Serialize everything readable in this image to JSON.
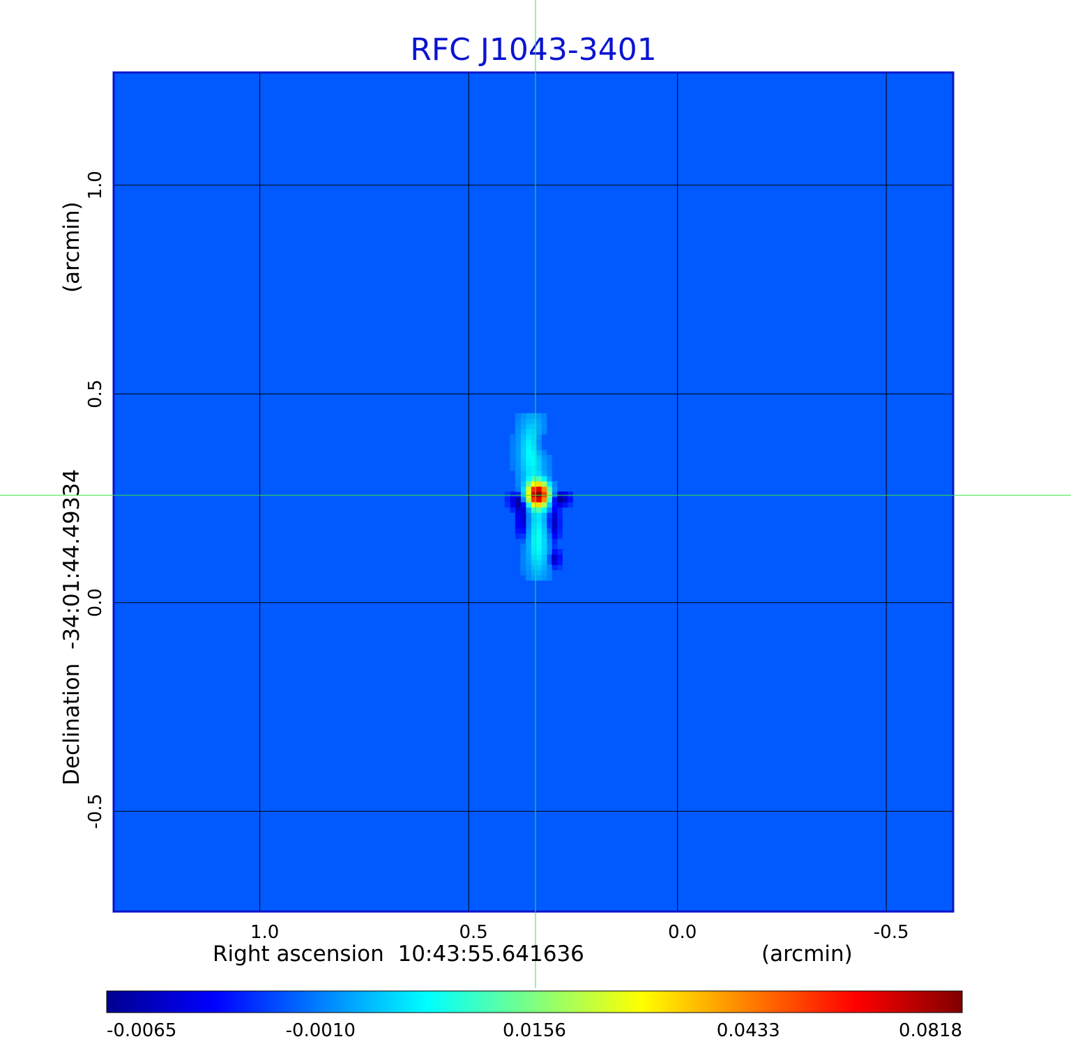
{
  "chart_data": {
    "type": "heatmap",
    "title": "RFC J1043-3401",
    "xlabel": "Right ascension  10:43:55.641636",
    "xunit": "(arcmin)",
    "ylabel": "Declination  -34:01:44.49334",
    "yunit": "(arcmin)",
    "xlim": [
      1.35,
      -0.66
    ],
    "ylim": [
      -0.74,
      1.27
    ],
    "x_ticks": [
      {
        "value": 1.0,
        "label": "1.0"
      },
      {
        "value": 0.5,
        "label": "0.5"
      },
      {
        "value": 0.0,
        "label": "0.0"
      },
      {
        "value": -0.5,
        "label": "-0.5"
      }
    ],
    "y_ticks": [
      {
        "value": 1.0,
        "label": "1.0"
      },
      {
        "value": 0.5,
        "label": "0.5"
      },
      {
        "value": 0.0,
        "label": "0.0"
      },
      {
        "value": -0.5,
        "label": "-0.5"
      }
    ],
    "grid": true,
    "colormap": "jet",
    "colorbar": {
      "placement": "bottom",
      "ticks": [
        "-0.0065",
        "-0.0010",
        "0.0156",
        "0.0433",
        "0.0818"
      ]
    },
    "crosshair": {
      "x": 0.34,
      "y": 0.257
    },
    "background_value": -0.0018,
    "source_components": [
      {
        "x": 0.335,
        "y": 0.26,
        "value": 0.0818,
        "sigma_x": 0.016,
        "sigma_y": 0.018
      },
      {
        "x": 0.33,
        "y": 0.38,
        "value": -0.0065,
        "sigma_x": 0.012,
        "sigma_y": 0.02
      },
      {
        "x": 0.375,
        "y": 0.245,
        "value": -0.0062,
        "sigma_x": 0.02,
        "sigma_y": 0.015
      },
      {
        "x": 0.285,
        "y": 0.25,
        "value": -0.0062,
        "sigma_x": 0.02,
        "sigma_y": 0.012
      },
      {
        "x": 0.37,
        "y": 0.2,
        "value": -0.006,
        "sigma_x": 0.012,
        "sigma_y": 0.035
      },
      {
        "x": 0.3,
        "y": 0.19,
        "value": -0.006,
        "sigma_x": 0.012,
        "sigma_y": 0.035
      },
      {
        "x": 0.295,
        "y": 0.105,
        "value": -0.0055,
        "sigma_x": 0.01,
        "sigma_y": 0.015
      },
      {
        "x": 0.35,
        "y": 0.36,
        "value": 0.008,
        "sigma_x": 0.02,
        "sigma_y": 0.06
      },
      {
        "x": 0.335,
        "y": 0.15,
        "value": 0.008,
        "sigma_x": 0.018,
        "sigma_y": 0.06
      }
    ]
  }
}
